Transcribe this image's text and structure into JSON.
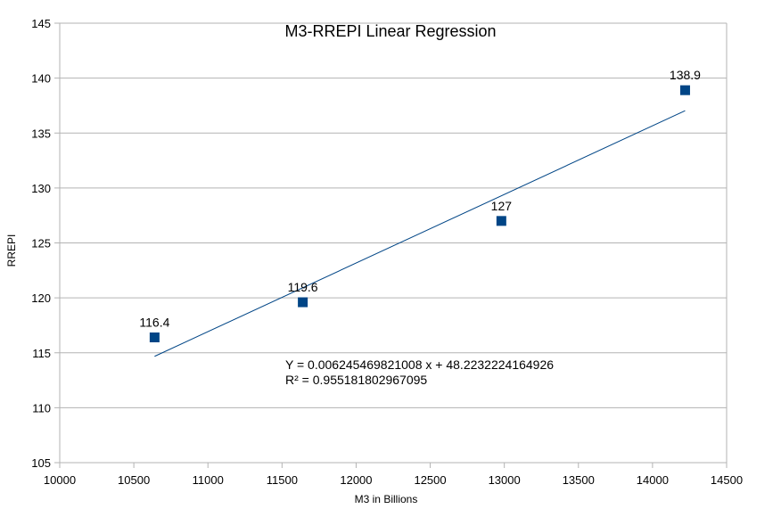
{
  "chart_data": {
    "type": "scatter",
    "title": "M3-RREPI Linear Regression",
    "xlabel": "M3 in Billions",
    "ylabel": "RREPI",
    "xlim": [
      10000,
      14500
    ],
    "ylim": [
      105,
      145
    ],
    "xticks": [
      "10000",
      "10500",
      "11000",
      "11500",
      "12000",
      "12500",
      "13000",
      "13500",
      "14000",
      "14500"
    ],
    "yticks": [
      "105",
      "110",
      "115",
      "120",
      "125",
      "130",
      "135",
      "140",
      "145"
    ],
    "grid": true,
    "legend": "none",
    "series": [
      {
        "x": [
          10640,
          11640,
          12980,
          14220
        ],
        "y": [
          116.4,
          119.6,
          127,
          138.9
        ],
        "labels": [
          "116.4",
          "119.6",
          "127",
          "138.9"
        ]
      }
    ],
    "trendline": {
      "slope": 0.006245469821008,
      "intercept": 48.2232224164926,
      "x_range": [
        10640,
        14220
      ],
      "equation": "Y = 0.006245469821008 x + 48.2232224164926",
      "r_squared": "R² = 0.955181802967095"
    },
    "colors": {
      "marker": "#004586",
      "trendline": "#004586",
      "grid": "#b3b3b3",
      "axis": "#b3b3b3"
    }
  }
}
